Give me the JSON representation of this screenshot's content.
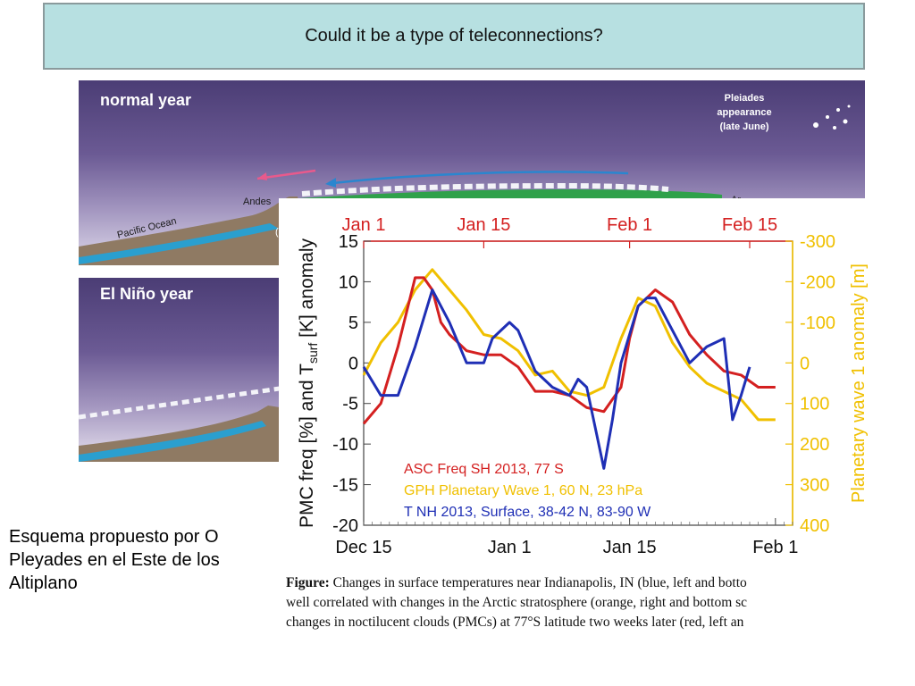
{
  "slide": {
    "title": "Could it be a type of teleconnections?",
    "caption_left": [
      "Esquema propuesto por O",
      "Pleyades en el Este de los",
      "Altiplano"
    ]
  },
  "illustration": {
    "normal_year": {
      "title": "normal year",
      "pleiades": [
        "Pleiades",
        "appearance",
        "(late June)"
      ],
      "labels": {
        "andes": "Andes",
        "pacific_ocean": "Pacific Ocean",
        "ar": "Ar",
        "paren": "("
      }
    },
    "el_nino_year": {
      "title": "El Niño year"
    }
  },
  "figure_caption": {
    "label": "Figure:",
    "lines": [
      " Changes in surface temperatures near Indianapolis, IN (blue, left and botto",
      "well correlated with changes in the Arctic stratosphere (orange, right and bottom sc",
      "changes in noctilucent clouds (PMCs) at 77°S latitude two weeks later (red, left an"
    ]
  },
  "chart_data": {
    "type": "line",
    "x_bottom": {
      "ticks": [
        0,
        17,
        31,
        48
      ],
      "labels": [
        "Dec 15",
        "Jan 1",
        "Jan 15",
        "Feb 1"
      ],
      "range": [
        0,
        50
      ]
    },
    "x_top": {
      "ticks": [
        0,
        14,
        31,
        45
      ],
      "labels": [
        "Jan 1",
        "Jan 15",
        "Feb 1",
        "Feb 15"
      ],
      "color": "#d42020"
    },
    "y_left": {
      "label": "PMC freq [%] and T",
      "label_sub": "surf",
      "label_tail": " [K] anomaly",
      "range": [
        -20,
        15
      ],
      "ticks": [
        15,
        10,
        5,
        0,
        -5,
        -10,
        -15,
        -20
      ],
      "tick_labels": [
        "15",
        "10",
        "5",
        "0",
        "-5",
        "-10",
        "-15",
        "-20"
      ]
    },
    "y_right": {
      "label": "Planetary wave 1 anomaly [m]",
      "range": [
        400,
        -300
      ],
      "ticks": [
        -300,
        -200,
        -100,
        0,
        100,
        200,
        300,
        400
      ],
      "tick_labels": [
        "-300",
        "-200",
        "-100",
        "0",
        "100",
        "200",
        "300",
        "400"
      ],
      "color": "#f0c000"
    },
    "series": [
      {
        "name": "ASC Freq SH 2013,  77 S",
        "color": "#d42020",
        "axis": "left",
        "x": [
          0,
          2,
          4,
          6,
          7,
          8,
          9,
          10,
          12,
          14,
          16,
          18,
          20,
          22,
          24,
          26,
          28,
          30,
          31,
          32,
          34,
          36,
          38,
          40,
          42,
          44,
          46,
          48
        ],
        "y": [
          -7.5,
          -5,
          2,
          10.5,
          10.5,
          9,
          5,
          3.5,
          1.5,
          1,
          1,
          -0.5,
          -3.5,
          -3.5,
          -4,
          -5.5,
          -6,
          -3,
          3,
          7,
          9,
          7.5,
          3.5,
          1,
          -1,
          -1.5,
          -3,
          -3
        ]
      },
      {
        "name": "GPH Planetary Wave 1, 60 N, 23 hPa",
        "color": "#f0c000",
        "axis": "right",
        "x": [
          0,
          2,
          4,
          6,
          8,
          10,
          12,
          14,
          16,
          18,
          20,
          22,
          24,
          26,
          28,
          30,
          32,
          34,
          36,
          38,
          40,
          42,
          44,
          46,
          48
        ],
        "y": [
          30,
          -50,
          -100,
          -180,
          -230,
          -180,
          -130,
          -70,
          -60,
          -30,
          30,
          20,
          70,
          80,
          60,
          -60,
          -160,
          -140,
          -50,
          10,
          50,
          70,
          90,
          140,
          140
        ]
      },
      {
        "name": "T NH 2013, Surface, 38-42 N, 83-90 W",
        "color": "#1f2fb5",
        "axis": "left",
        "x": [
          0,
          2,
          4,
          6,
          8,
          10,
          12,
          14,
          15,
          16,
          17,
          18,
          20,
          22,
          24,
          25,
          26,
          28,
          29,
          30,
          32,
          33,
          34,
          36,
          38,
          40,
          42,
          43,
          44,
          45
        ],
        "y": [
          -0.5,
          -4,
          -4,
          2,
          9,
          5,
          0,
          0,
          3,
          4,
          5,
          4,
          -1,
          -3,
          -4,
          -2,
          -3,
          -13,
          -7,
          0,
          7,
          8,
          8,
          4,
          0,
          2,
          3,
          -7,
          -4,
          -0.5
        ]
      }
    ]
  }
}
